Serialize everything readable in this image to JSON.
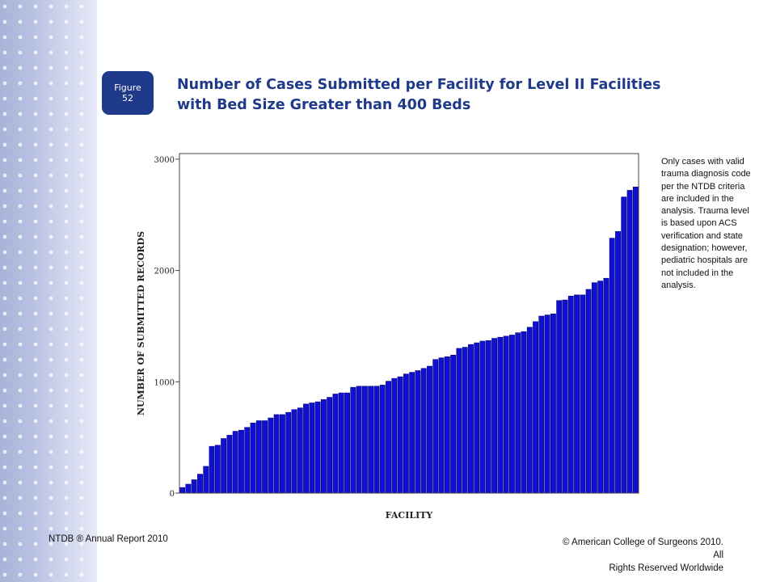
{
  "figure_badge": {
    "line1": "Figure",
    "line2": "52"
  },
  "title_line1": "Number of Cases Submitted per Facility for Level II Facilities",
  "title_line2": "with Bed Size Greater than 400 Beds",
  "note": "Only cases with valid trauma diagnosis code per the NTDB criteria are included in the analysis.  Trauma level is based upon ACS verification and state designation; however, pediatric hospitals are not included in the analysis.",
  "footer_left": "NTDB ® Annual Report 2010",
  "footer_right_line1": "© American College of Surgeons 2010.  All",
  "footer_right_line2": "Rights Reserved Worldwide",
  "colors": {
    "bar": "#1010d0",
    "bar_edge": "#000080",
    "brand": "#1f3a8a"
  },
  "chart_data": {
    "type": "bar",
    "xlabel": "FACILITY",
    "ylabel": "NUMBER OF SUBMITTED RECORDS",
    "ylim": [
      0,
      3050
    ],
    "yticks": [
      0,
      1000,
      2000,
      3000
    ],
    "grid": false,
    "values": [
      50,
      80,
      120,
      170,
      240,
      420,
      430,
      490,
      520,
      555,
      565,
      590,
      630,
      650,
      650,
      675,
      705,
      705,
      725,
      750,
      765,
      800,
      810,
      820,
      840,
      860,
      890,
      900,
      900,
      950,
      960,
      960,
      960,
      960,
      970,
      1005,
      1030,
      1045,
      1070,
      1085,
      1100,
      1120,
      1140,
      1200,
      1215,
      1225,
      1240,
      1300,
      1310,
      1335,
      1350,
      1365,
      1370,
      1390,
      1400,
      1410,
      1420,
      1440,
      1450,
      1490,
      1540,
      1590,
      1600,
      1610,
      1730,
      1735,
      1770,
      1780,
      1780,
      1830,
      1890,
      1905,
      1930,
      2290,
      2350,
      2660,
      2720,
      2750
    ]
  }
}
